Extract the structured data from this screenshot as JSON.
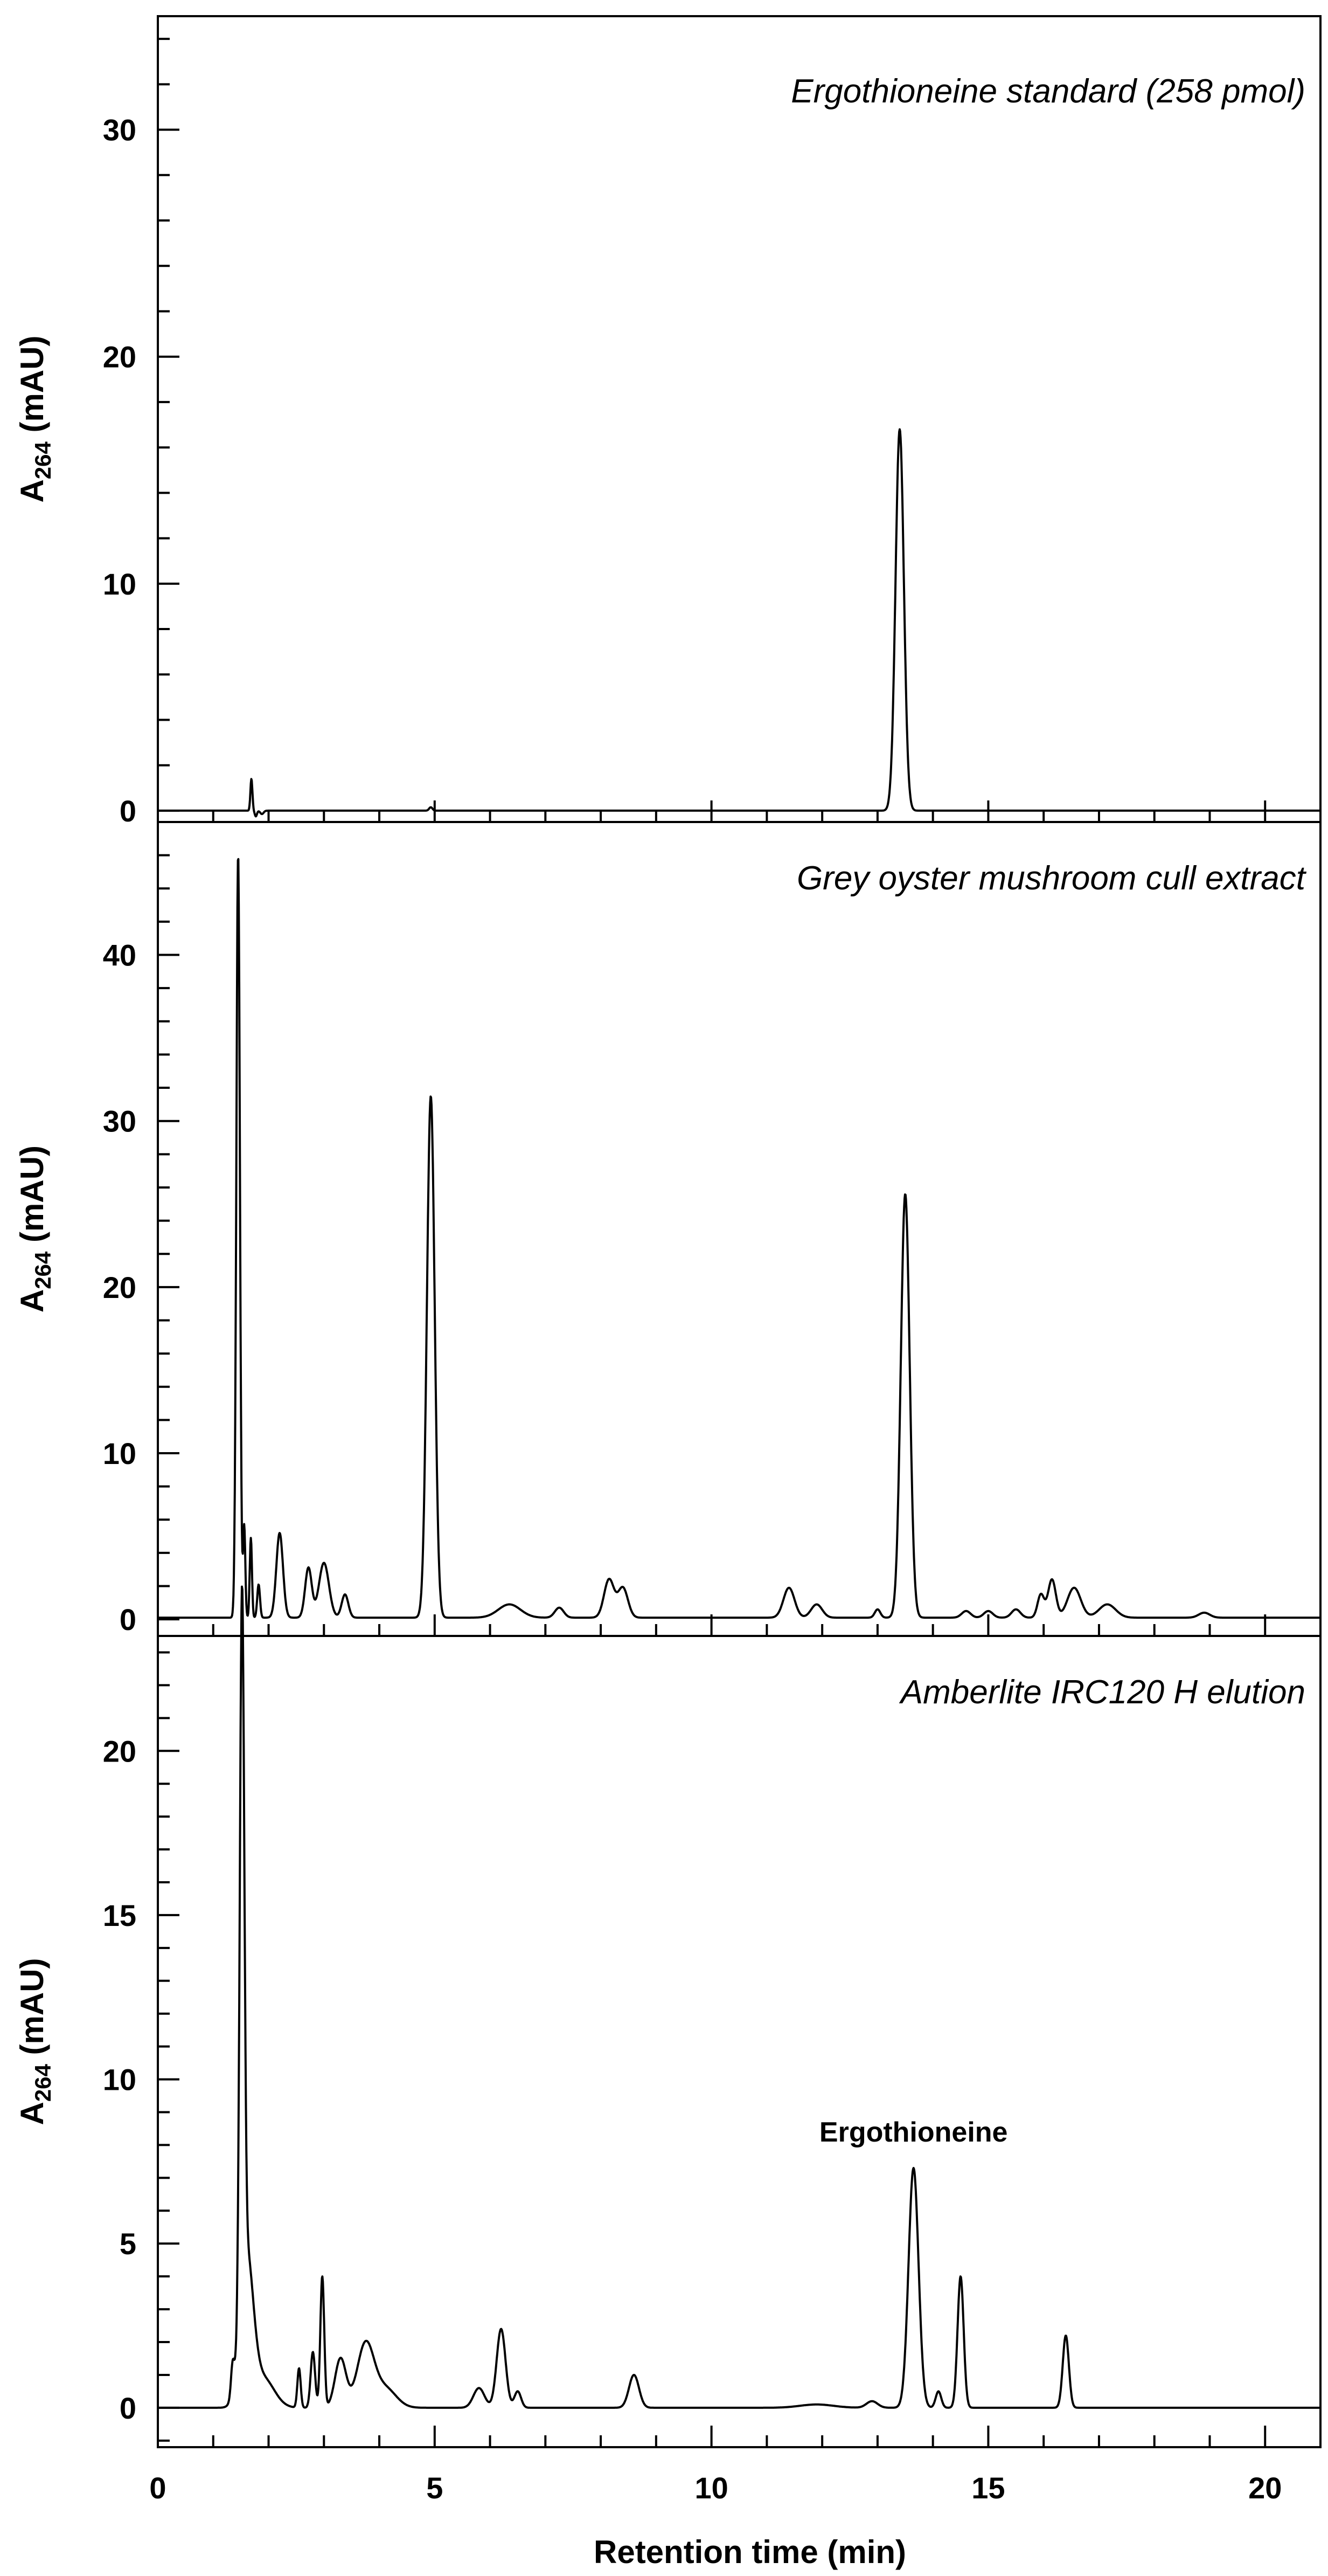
{
  "chart_data": [
    {
      "type": "line",
      "title": "Ergothioneine standard (258 pmol)",
      "xlabel": "Retention time (min)",
      "ylabel_main": "A",
      "ylabel_sub": "264",
      "ylabel_unit": " (mAU)",
      "xlim": [
        0,
        21
      ],
      "ylim": [
        -0.5,
        35
      ],
      "yticks": [
        0,
        10,
        20,
        30
      ],
      "ytick_labels": [
        "0",
        "10",
        "20",
        "30"
      ],
      "y_minor_step": 2,
      "baseline": 0.0,
      "peaks": [
        {
          "rt": 1.69,
          "height": 1.4,
          "width": 0.018
        },
        {
          "rt": 1.77,
          "height": -0.25,
          "width": 0.02
        },
        {
          "rt": 1.88,
          "height": -0.15,
          "width": 0.03
        },
        {
          "rt": 4.93,
          "height": 0.15,
          "width": 0.03
        },
        {
          "rt": 13.4,
          "height": 16.8,
          "width": 0.075
        }
      ],
      "annotations": []
    },
    {
      "type": "line",
      "title": "Grey oyster mushroom cull extract",
      "xlabel": "Retention time (min)",
      "ylabel_main": "A",
      "ylabel_sub": "264",
      "ylabel_unit": " (mAU)",
      "xlim": [
        0,
        21
      ],
      "ylim": [
        -1,
        48
      ],
      "yticks": [
        0,
        10,
        20,
        30,
        40
      ],
      "ytick_labels": [
        "0",
        "10",
        "20",
        "30",
        "40"
      ],
      "y_minor_step": 2,
      "baseline": 0.1,
      "peaks": [
        {
          "rt": 1.45,
          "height": 46.0,
          "width": 0.032
        },
        {
          "rt": 1.56,
          "height": 5.5,
          "width": 0.02
        },
        {
          "rt": 1.68,
          "height": 4.8,
          "width": 0.02
        },
        {
          "rt": 1.82,
          "height": 2.0,
          "width": 0.025
        },
        {
          "rt": 2.2,
          "height": 5.1,
          "width": 0.06
        },
        {
          "rt": 2.72,
          "height": 3.0,
          "width": 0.06
        },
        {
          "rt": 3.0,
          "height": 3.3,
          "width": 0.09
        },
        {
          "rt": 3.38,
          "height": 1.4,
          "width": 0.06
        },
        {
          "rt": 4.93,
          "height": 31.4,
          "width": 0.07
        },
        {
          "rt": 6.35,
          "height": 0.8,
          "width": 0.2
        },
        {
          "rt": 7.25,
          "height": 0.6,
          "width": 0.08
        },
        {
          "rt": 8.15,
          "height": 2.3,
          "width": 0.09
        },
        {
          "rt": 8.4,
          "height": 1.8,
          "width": 0.09
        },
        {
          "rt": 11.4,
          "height": 1.8,
          "width": 0.1
        },
        {
          "rt": 11.9,
          "height": 0.8,
          "width": 0.1
        },
        {
          "rt": 13.0,
          "height": 0.5,
          "width": 0.05
        },
        {
          "rt": 13.5,
          "height": 25.5,
          "width": 0.08
        },
        {
          "rt": 14.6,
          "height": 0.4,
          "width": 0.08
        },
        {
          "rt": 15.0,
          "height": 0.4,
          "width": 0.08
        },
        {
          "rt": 15.5,
          "height": 0.5,
          "width": 0.08
        },
        {
          "rt": 15.95,
          "height": 1.4,
          "width": 0.06
        },
        {
          "rt": 16.15,
          "height": 2.3,
          "width": 0.07
        },
        {
          "rt": 16.55,
          "height": 1.8,
          "width": 0.12
        },
        {
          "rt": 17.15,
          "height": 0.8,
          "width": 0.15
        },
        {
          "rt": 18.9,
          "height": 0.3,
          "width": 0.1
        }
      ],
      "annotations": []
    },
    {
      "type": "line",
      "title": "Amberlite IRC120 H elution",
      "xlabel": "Retention time (min)",
      "ylabel_main": "A",
      "ylabel_sub": "264",
      "ylabel_unit": " (mAU)",
      "xlim": [
        0,
        21
      ],
      "ylim": [
        -1.2,
        23.5
      ],
      "yticks": [
        0,
        5,
        10,
        15,
        20
      ],
      "ytick_labels": [
        "0",
        "5",
        "10",
        "15",
        "20"
      ],
      "y_minor_step": 1,
      "baseline": 0.0,
      "peaks": [
        {
          "rt": 1.35,
          "height": 0.9,
          "width": 0.03
        },
        {
          "rt": 1.52,
          "height": 21.3,
          "width": 0.04
        },
        {
          "rt": 1.6,
          "height": 4.5,
          "width": 0.12
        },
        {
          "rt": 1.9,
          "height": 0.9,
          "width": 0.2
        },
        {
          "rt": 2.55,
          "height": 1.2,
          "width": 0.03
        },
        {
          "rt": 2.8,
          "height": 1.7,
          "width": 0.04
        },
        {
          "rt": 2.97,
          "height": 4.0,
          "width": 0.035
        },
        {
          "rt": 3.3,
          "height": 1.5,
          "width": 0.1
        },
        {
          "rt": 3.75,
          "height": 1.9,
          "width": 0.15
        },
        {
          "rt": 4.1,
          "height": 0.6,
          "width": 0.2
        },
        {
          "rt": 5.8,
          "height": 0.6,
          "width": 0.1
        },
        {
          "rt": 6.2,
          "height": 2.4,
          "width": 0.08
        },
        {
          "rt": 6.5,
          "height": 0.5,
          "width": 0.06
        },
        {
          "rt": 8.6,
          "height": 1.0,
          "width": 0.09
        },
        {
          "rt": 11.9,
          "height": 0.1,
          "width": 0.3
        },
        {
          "rt": 12.9,
          "height": 0.2,
          "width": 0.1
        },
        {
          "rt": 13.65,
          "height": 7.3,
          "width": 0.09
        },
        {
          "rt": 14.1,
          "height": 0.5,
          "width": 0.05
        },
        {
          "rt": 14.5,
          "height": 4.0,
          "width": 0.055
        },
        {
          "rt": 16.4,
          "height": 2.2,
          "width": 0.055
        }
      ],
      "annotations": [
        {
          "text": "Ergothioneine",
          "x": 13.65,
          "y": 8.4
        }
      ]
    }
  ],
  "x_axis": {
    "label": "Retention time (min)",
    "ticks": [
      0,
      5,
      10,
      15,
      20
    ],
    "tick_labels": [
      "0",
      "5",
      "10",
      "15",
      "20"
    ],
    "minor_step": 1
  }
}
